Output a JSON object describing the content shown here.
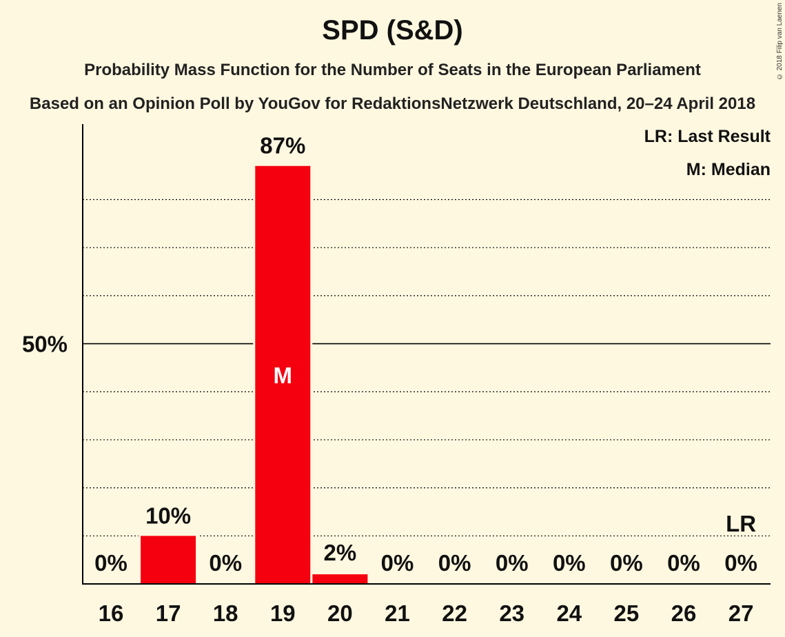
{
  "chart_data": {
    "type": "bar",
    "title": "SPD (S&D)",
    "subtitle": "Probability Mass Function for the Number of Seats in the European Parliament",
    "source": "Based on an Opinion Poll by YouGov for RedaktionsNetzwerk Deutschland, 20–24 April 2018",
    "copyright": "© 2018 Filip van Laenen",
    "categories": [
      "16",
      "17",
      "18",
      "19",
      "20",
      "21",
      "22",
      "23",
      "24",
      "25",
      "26",
      "27"
    ],
    "values": [
      0,
      10,
      0,
      87,
      2,
      0,
      0,
      0,
      0,
      0,
      0,
      0
    ],
    "value_labels": [
      "0%",
      "10%",
      "0%",
      "87%",
      "2%",
      "0%",
      "0%",
      "0%",
      "0%",
      "0%",
      "0%",
      "0%"
    ],
    "ylim": [
      0,
      95
    ],
    "y_tick_label": "50%",
    "y_tick_value": 50,
    "gridlines": [
      10,
      20,
      30,
      40,
      60,
      70,
      80
    ],
    "median_category": "19",
    "median_label": "M",
    "last_result_category": "27",
    "last_result_label": "LR",
    "legend": [
      "LR: Last Result",
      "M: Median"
    ],
    "bar_color": "#f5000f",
    "background_color": "#fff8e0"
  }
}
